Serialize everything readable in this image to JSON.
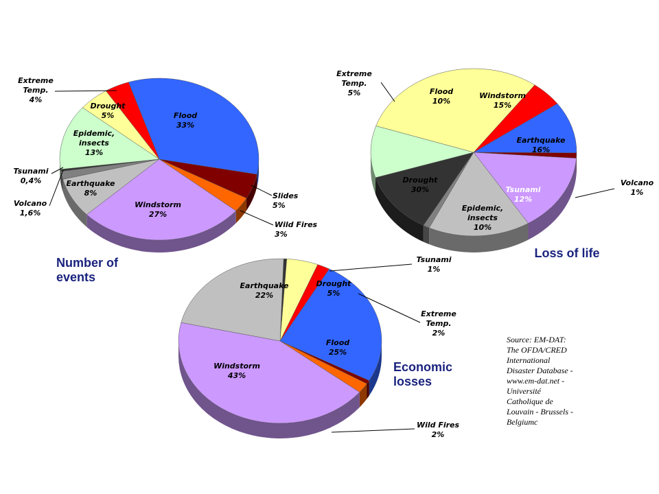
{
  "source": [
    "Source:  EM-DAT:",
    "The OFDA/CRED",
    "International",
    "Disaster Database -",
    "www.em-dat.net -",
    "Université",
    "Catholique de",
    "Louvain - Brussels -",
    "Belgiumc"
  ],
  "chart_data": [
    {
      "type": "pie",
      "title": [
        "Number of",
        "events"
      ],
      "slices": [
        {
          "label": [
            "Flood",
            "33%"
          ],
          "value": 33,
          "color": "#3366ff"
        },
        {
          "label": [
            "Slides",
            "5%"
          ],
          "value": 5,
          "color": "#800000"
        },
        {
          "label": [
            "Wild Fires",
            "3%"
          ],
          "value": 3,
          "color": "#ff6600"
        },
        {
          "label": [
            "Windstorm",
            "27%"
          ],
          "value": 27,
          "color": "#cc99ff"
        },
        {
          "label": [
            "Earthquake",
            "8%"
          ],
          "value": 8,
          "color": "#c0c0c0"
        },
        {
          "label": [
            "Volcano",
            "1,6%"
          ],
          "value": 1.6,
          "color": "#808080"
        },
        {
          "label": [
            "Tsunami",
            "0,4%"
          ],
          "value": 0.4,
          "color": "#333333"
        },
        {
          "label": [
            "Epidemic,",
            "insects",
            "13%"
          ],
          "value": 13,
          "color": "#ccffcc"
        },
        {
          "label": [
            "Drought",
            "5%"
          ],
          "value": 5,
          "color": "#ffff99"
        },
        {
          "label": [
            "Extreme",
            "Temp.",
            "4%"
          ],
          "value": 4,
          "color": "#ff0000"
        }
      ]
    },
    {
      "type": "pie",
      "title": [
        "Loss of life"
      ],
      "slices": [
        {
          "label": [
            "Windstorm",
            "15%"
          ],
          "value": 15,
          "color": "#cc99ff"
        },
        {
          "label": [
            "Earthquake",
            "16%"
          ],
          "value": 16,
          "color": "#c0c0c0"
        },
        {
          "label": [
            "Volcano",
            "1%"
          ],
          "value": 1,
          "color": "#808080"
        },
        {
          "label": [
            "Tsunami",
            "12%"
          ],
          "value": 12,
          "color": "#333333"
        },
        {
          "label": [
            "Epidemic,",
            "insects",
            "10%"
          ],
          "value": 10,
          "color": "#ccffcc"
        },
        {
          "label": [
            "Drought",
            "30%"
          ],
          "value": 30,
          "color": "#ffff99"
        },
        {
          "label": [
            "Extreme",
            "Temp.",
            "5%"
          ],
          "value": 5,
          "color": "#ff0000"
        },
        {
          "label": [
            "Flood",
            "10%"
          ],
          "value": 10,
          "color": "#3366ff"
        },
        {
          "label": [],
          "value": 1,
          "color": "#800000"
        }
      ]
    },
    {
      "type": "pie",
      "title": [
        "Economic",
        "losses"
      ],
      "slices": [
        {
          "label": [
            "Tsunami",
            "1%"
          ],
          "value": 0.5,
          "color": "#333333"
        },
        {
          "label": [
            "Drought",
            "5%"
          ],
          "value": 5,
          "color": "#ffff99"
        },
        {
          "label": [
            "Extreme",
            "Temp.",
            "2%"
          ],
          "value": 2,
          "color": "#ff0000"
        },
        {
          "label": [
            "Flood",
            "25%"
          ],
          "value": 25,
          "color": "#3366ff"
        },
        {
          "label": [],
          "value": 0.7,
          "color": "#800000"
        },
        {
          "label": [
            "Wild Fires",
            "2%"
          ],
          "value": 2,
          "color": "#ff6600"
        },
        {
          "label": [
            "Windstorm",
            "43%"
          ],
          "value": 43,
          "color": "#cc99ff"
        },
        {
          "label": [
            "Earthquake",
            "22%"
          ],
          "value": 22,
          "color": "#c0c0c0"
        }
      ]
    }
  ]
}
